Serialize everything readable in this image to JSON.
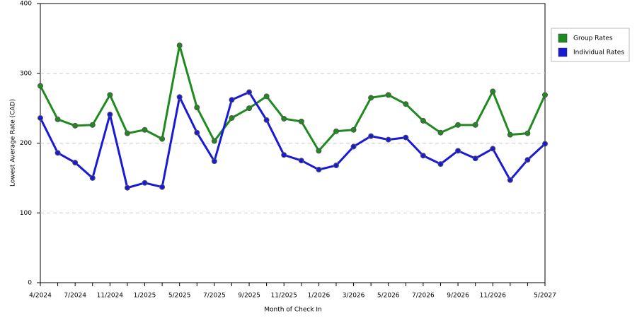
{
  "chart_data": {
    "type": "line",
    "x_label": "Month of Check In",
    "y_label": "Lowest Average Rate (CAD)",
    "categories": [
      "4/2024",
      null,
      "7/2024",
      null,
      "11/2024",
      null,
      "1/2025",
      null,
      "5/2025",
      null,
      "7/2025",
      null,
      "9/2025",
      null,
      "11/2025",
      null,
      "1/2026",
      null,
      "3/2026",
      null,
      "5/2026",
      null,
      "7/2026",
      null,
      "9/2026",
      null,
      "11/2026",
      null,
      null,
      "5/2027"
    ],
    "series": [
      {
        "name": "Group Rates",
        "color": "#1f8a1f",
        "values": [
          282,
          234,
          225,
          226,
          269,
          214,
          219,
          206,
          340,
          251,
          203,
          236,
          250,
          267,
          235,
          231,
          189,
          217,
          219,
          265,
          269,
          256,
          232,
          215,
          226,
          226,
          274,
          212,
          214,
          269
        ]
      },
      {
        "name": "Individual Rates",
        "color": "#1a1ad6",
        "values": [
          236,
          186,
          172,
          150,
          241,
          136,
          143,
          137,
          266,
          215,
          174,
          262,
          273,
          233,
          183,
          175,
          162,
          168,
          195,
          210,
          205,
          208,
          182,
          170,
          189,
          178,
          192,
          147,
          176,
          199
        ]
      }
    ],
    "ylim": [
      0,
      400
    ],
    "yticks": [
      0,
      100,
      200,
      300,
      400
    ],
    "grid": true,
    "legend": "right"
  }
}
